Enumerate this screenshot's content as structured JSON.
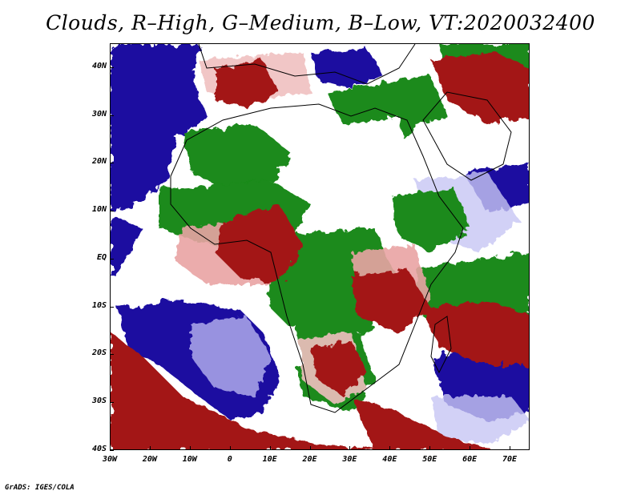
{
  "title": "Clouds, R–High, G–Medium, B–Low, VT:2020032400",
  "credit": "GrADS: IGES/COLA",
  "map": {
    "lon_range": [
      -30,
      75
    ],
    "lat_range": [
      -40,
      45
    ],
    "legend_colors": {
      "high": "#a31818",
      "medium": "#1a8a1a",
      "low": "#1c0fa0"
    }
  },
  "axes": {
    "y_labels": [
      "40N",
      "30N",
      "20N",
      "10N",
      "EQ",
      "10S",
      "20S",
      "30S",
      "40S"
    ],
    "y_values": [
      40,
      30,
      20,
      10,
      0,
      -10,
      -20,
      -30,
      -40
    ],
    "x_labels": [
      "30W",
      "20W",
      "10W",
      "0",
      "10E",
      "20E",
      "30E",
      "40E",
      "50E",
      "60E",
      "70E"
    ],
    "x_values": [
      -30,
      -20,
      -10,
      0,
      10,
      20,
      30,
      40,
      50,
      60,
      70
    ]
  }
}
